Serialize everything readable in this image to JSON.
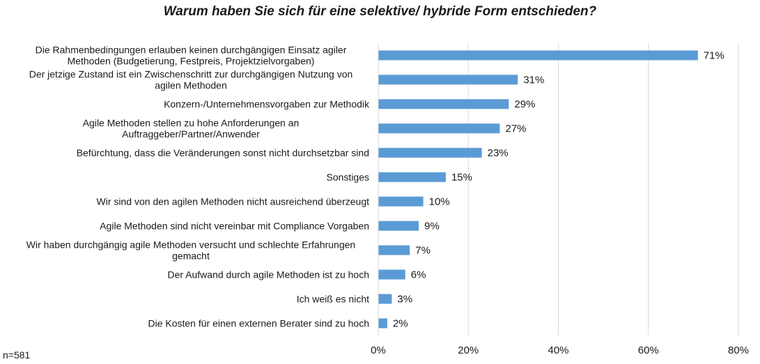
{
  "chart_data": {
    "type": "bar",
    "orientation": "horizontal",
    "title": "Warum haben Sie sich für eine selektive/ hybride Form entschieden?",
    "sample_note": "n=581",
    "categories": [
      [
        "Die Rahmenbedingungen erlauben keinen durchgängigen Einsatz agiler",
        "Methoden (Budgetierung, Festpreis, Projektzielvorgaben)"
      ],
      [
        "Der jetzige Zustand ist ein Zwischenschritt zur durchgängigen Nutzung von",
        "agilen Methoden"
      ],
      [
        "Konzern-/Unternehmensvorgaben zur Methodik"
      ],
      [
        "Agile Methoden stellen zu hohe Anforderungen an",
        "Auftraggeber/Partner/Anwender"
      ],
      [
        "Befürchtung, dass die Veränderungen sonst nicht durchsetzbar sind"
      ],
      [
        "Sonstiges"
      ],
      [
        "Wir sind von den agilen Methoden nicht ausreichend überzeugt"
      ],
      [
        "Agile Methoden sind nicht vereinbar mit Compliance Vorgaben"
      ],
      [
        "Wir haben durchgängig agile Methoden versucht und schlechte Erfahrungen",
        "gemacht"
      ],
      [
        "Der Aufwand durch agile Methoden ist zu hoch"
      ],
      [
        "Ich weiß es nicht"
      ],
      [
        "Die Kosten für einen externen Berater sind zu hoch"
      ]
    ],
    "values": [
      71,
      31,
      29,
      27,
      23,
      15,
      10,
      9,
      7,
      6,
      3,
      2
    ],
    "value_labels": [
      "71%",
      "31%",
      "29%",
      "27%",
      "23%",
      "15%",
      "10%",
      "9%",
      "7%",
      "6%",
      "3%",
      "2%"
    ],
    "xlim": [
      0,
      80
    ],
    "xticks": [
      0,
      20,
      40,
      60,
      80
    ],
    "xtick_labels": [
      "0%",
      "20%",
      "40%",
      "60%",
      "80%"
    ],
    "grid": "vertical",
    "bar_color": "#5b9bd5",
    "grid_color": "#d9d9d9"
  }
}
